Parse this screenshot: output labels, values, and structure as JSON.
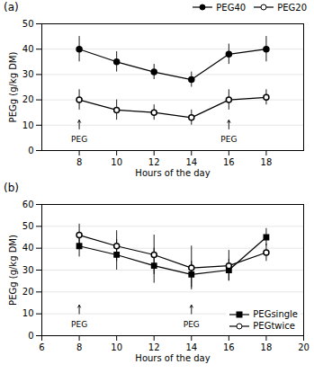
{
  "chart_data": [
    {
      "type": "line",
      "title": "(a)",
      "x": [
        8,
        10,
        12,
        14,
        16,
        18
      ],
      "series": [
        {
          "name": "PEG40",
          "color": "black",
          "marker": "filled circle",
          "line_style": "solid",
          "values": [
            40,
            35,
            31,
            28,
            38,
            40
          ],
          "errors": [
            5,
            4,
            3,
            3,
            4,
            5
          ]
        },
        {
          "name": "PEG20",
          "color": "black",
          "marker": "open circle",
          "line_style": "solid",
          "values": [
            20,
            16,
            15,
            13,
            20,
            21
          ],
          "errors": [
            4,
            4,
            3,
            3,
            4,
            3
          ]
        }
      ],
      "xlabel": "Hours of the day",
      "ylabel": "PEGg (g/kg DM)",
      "xlim": [
        6,
        20
      ],
      "xticks": [
        8,
        10,
        12,
        14,
        16,
        18
      ],
      "ylim": [
        0,
        50
      ],
      "yticks": [
        0,
        10,
        20,
        30,
        40,
        50
      ],
      "grid": "y",
      "legend": "upper right",
      "annotations": [
        {
          "text": "PEG",
          "x": 8,
          "y": 3.5
        },
        {
          "text": "PEG",
          "x": 16,
          "y": 3.5
        }
      ],
      "arrows": [
        {
          "x": 8,
          "y_from": 8.5,
          "y_to": 12
        },
        {
          "x": 16,
          "y_from": 8.5,
          "y_to": 12
        }
      ]
    },
    {
      "type": "line",
      "title": "(b)",
      "x": [
        8,
        10,
        12,
        14,
        16,
        18
      ],
      "series": [
        {
          "name": "PEGsingle",
          "color": "black",
          "marker": "filled square",
          "line_style": "solid",
          "values": [
            41,
            37,
            32,
            28,
            30,
            45
          ],
          "errors": [
            5,
            7,
            8,
            6,
            5,
            4
          ]
        },
        {
          "name": "PEGtwice",
          "color": "black",
          "marker": "open circle",
          "line_style": "solid",
          "values": [
            46,
            41,
            37,
            31,
            32,
            38
          ],
          "errors": [
            5,
            7,
            9,
            10,
            7,
            4
          ]
        }
      ],
      "xlabel": "Hours of the day",
      "ylabel": "PEGg (g/kg DM)",
      "xlim": [
        6,
        20
      ],
      "xticks": [
        6,
        8,
        10,
        12,
        14,
        16,
        18,
        20
      ],
      "ylim": [
        0,
        60
      ],
      "yticks": [
        0,
        10,
        20,
        30,
        40,
        50,
        60
      ],
      "grid": "y",
      "legend": "lower right",
      "annotations": [
        {
          "text": "PEG",
          "x": 8,
          "y": 4
        },
        {
          "text": "PEG",
          "x": 14,
          "y": 4
        }
      ],
      "arrows": [
        {
          "x": 8,
          "y_from": 10,
          "y_to": 14
        },
        {
          "x": 14,
          "y_from": 10,
          "y_to": 14
        }
      ]
    }
  ]
}
